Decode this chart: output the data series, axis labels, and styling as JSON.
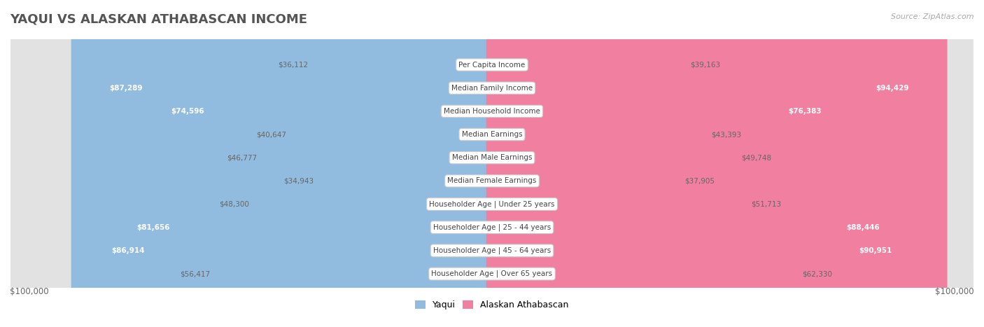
{
  "title": "YAQUI VS ALASKAN ATHABASCAN INCOME",
  "source": "Source: ZipAtlas.com",
  "categories": [
    "Per Capita Income",
    "Median Family Income",
    "Median Household Income",
    "Median Earnings",
    "Median Male Earnings",
    "Median Female Earnings",
    "Householder Age | Under 25 years",
    "Householder Age | 25 - 44 years",
    "Householder Age | 45 - 64 years",
    "Householder Age | Over 65 years"
  ],
  "yaqui_values": [
    36112,
    87289,
    74596,
    40647,
    46777,
    34943,
    48300,
    81656,
    86914,
    56417
  ],
  "alaskan_values": [
    39163,
    94429,
    76383,
    43393,
    49748,
    37905,
    51713,
    88446,
    90951,
    62330
  ],
  "yaqui_labels": [
    "$36,112",
    "$87,289",
    "$74,596",
    "$40,647",
    "$46,777",
    "$34,943",
    "$48,300",
    "$81,656",
    "$86,914",
    "$56,417"
  ],
  "alaskan_labels": [
    "$39,163",
    "$94,429",
    "$76,383",
    "$43,393",
    "$49,748",
    "$37,905",
    "$51,713",
    "$88,446",
    "$90,951",
    "$62,330"
  ],
  "yaqui_color": "#92bcdf",
  "alaskan_color": "#f07fa0",
  "max_value": 100000,
  "xlabel_left": "$100,000",
  "xlabel_right": "$100,000",
  "legend_yaqui": "Yaqui",
  "legend_alaskan": "Alaskan Athabascan",
  "row_bg_odd": "#efefef",
  "row_bg_even": "#e2e2e2",
  "label_box_color": "#ffffff",
  "label_box_edge": "#cccccc",
  "title_color": "#555555",
  "source_color": "#aaaaaa",
  "value_dark_color": "#666666",
  "value_light_color": "#ffffff"
}
